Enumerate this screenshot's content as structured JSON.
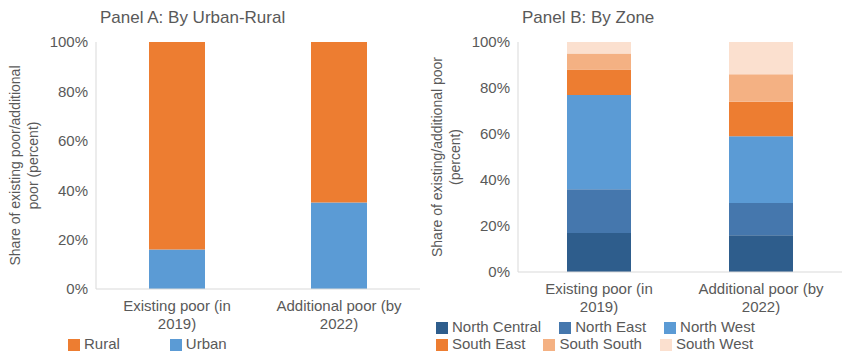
{
  "chart_data": [
    {
      "type": "bar",
      "title": "Panel A: By Urban-Rural",
      "ylabel": [
        "Share of existing poor/additional",
        "poor (percent)"
      ],
      "categories": [
        "Existing poor (in 2019)",
        "Additional poor (by 2022)"
      ],
      "series": [
        {
          "name": "Urban",
          "color": "#5b9bd5",
          "values": [
            16,
            35
          ]
        },
        {
          "name": "Rural",
          "color": "#ed7d31",
          "values": [
            84,
            65
          ]
        }
      ],
      "stacked": true,
      "grid": false,
      "legend": "bottom",
      "ylim": [
        0,
        100
      ],
      "yticks": [
        {
          "value": 0,
          "label": "0%"
        },
        {
          "value": 20,
          "label": "20%"
        },
        {
          "value": 40,
          "label": "40%"
        },
        {
          "value": 60,
          "label": "60%"
        },
        {
          "value": 80,
          "label": "80%"
        },
        {
          "value": 100,
          "label": "100%"
        }
      ]
    },
    {
      "type": "bar",
      "title": "Panel B: By Zone",
      "ylabel": [
        "Share of existing/additional poor",
        "(percent)"
      ],
      "categories": [
        "Existing poor (in 2019)",
        "Additional poor (by 2022)"
      ],
      "series": [
        {
          "name": "North Central",
          "color": "#2e5d8c",
          "values": [
            17,
            16
          ]
        },
        {
          "name": "North East",
          "color": "#4577ad",
          "values": [
            19,
            14
          ]
        },
        {
          "name": "North West",
          "color": "#5b9bd5",
          "values": [
            41,
            29
          ]
        },
        {
          "name": "South East",
          "color": "#ed7d31",
          "values": [
            11,
            15
          ]
        },
        {
          "name": "South South",
          "color": "#f4b183",
          "values": [
            7,
            12
          ]
        },
        {
          "name": "South West",
          "color": "#fbe0cf",
          "values": [
            5,
            14
          ]
        }
      ],
      "stacked": true,
      "grid": false,
      "legend": "bottom",
      "ylim": [
        0,
        100
      ],
      "yticks": [
        {
          "value": 0,
          "label": "0%"
        },
        {
          "value": 20,
          "label": "20%"
        },
        {
          "value": 40,
          "label": "40%"
        },
        {
          "value": 60,
          "label": "60%"
        },
        {
          "value": 80,
          "label": "80%"
        },
        {
          "value": 100,
          "label": "100%"
        }
      ]
    }
  ]
}
